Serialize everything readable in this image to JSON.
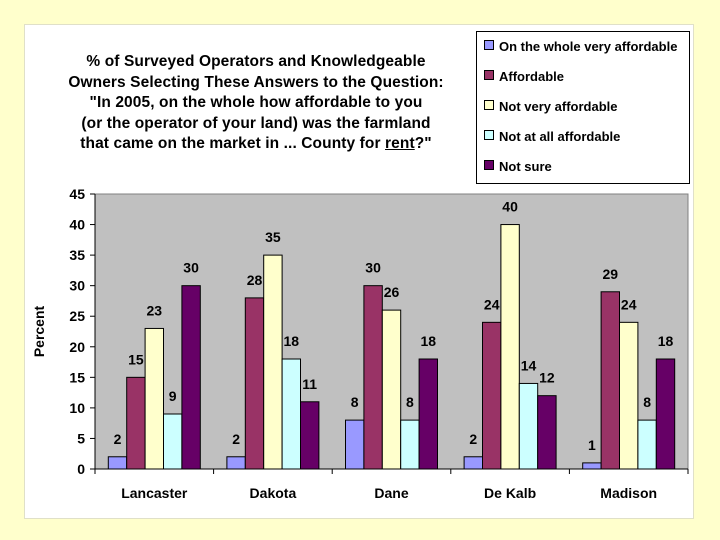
{
  "chart_data": {
    "type": "bar",
    "title_lines": [
      "% of Surveyed Operators and Knowledgeable",
      "Owners Selecting These Answers to the Question:",
      "\"In 2005, on the whole how affordable to you",
      "(or the operator of your land) was the farmland"
    ],
    "title_last_prefix": "that came on the market in ... County for ",
    "title_last_underlined": "rent",
    "title_last_suffix": "?\"",
    "ylabel": "Percent",
    "ylim": [
      0,
      45
    ],
    "yticks": [
      0,
      5,
      10,
      15,
      20,
      25,
      30,
      35,
      40,
      45
    ],
    "categories": [
      "Lancaster",
      "Dakota",
      "Dane",
      "De Kalb",
      "Madison"
    ],
    "series": [
      {
        "name": "On the whole very affordable",
        "color": "#9999FF",
        "values": [
          2,
          2,
          8,
          2,
          1
        ]
      },
      {
        "name": "Affordable",
        "color": "#993366",
        "values": [
          15,
          28,
          30,
          24,
          29
        ]
      },
      {
        "name": "Not very affordable",
        "color": "#FFFFCC",
        "values": [
          23,
          35,
          26,
          40,
          24
        ]
      },
      {
        "name": "Not at all affordable",
        "color": "#CCFFFF",
        "values": [
          9,
          18,
          8,
          14,
          8
        ]
      },
      {
        "name": "Not sure",
        "color": "#660066",
        "values": [
          30,
          11,
          18,
          12,
          18
        ]
      }
    ],
    "grid": false,
    "legend_position": "top-right",
    "plot_background": "#C0C0C0"
  }
}
